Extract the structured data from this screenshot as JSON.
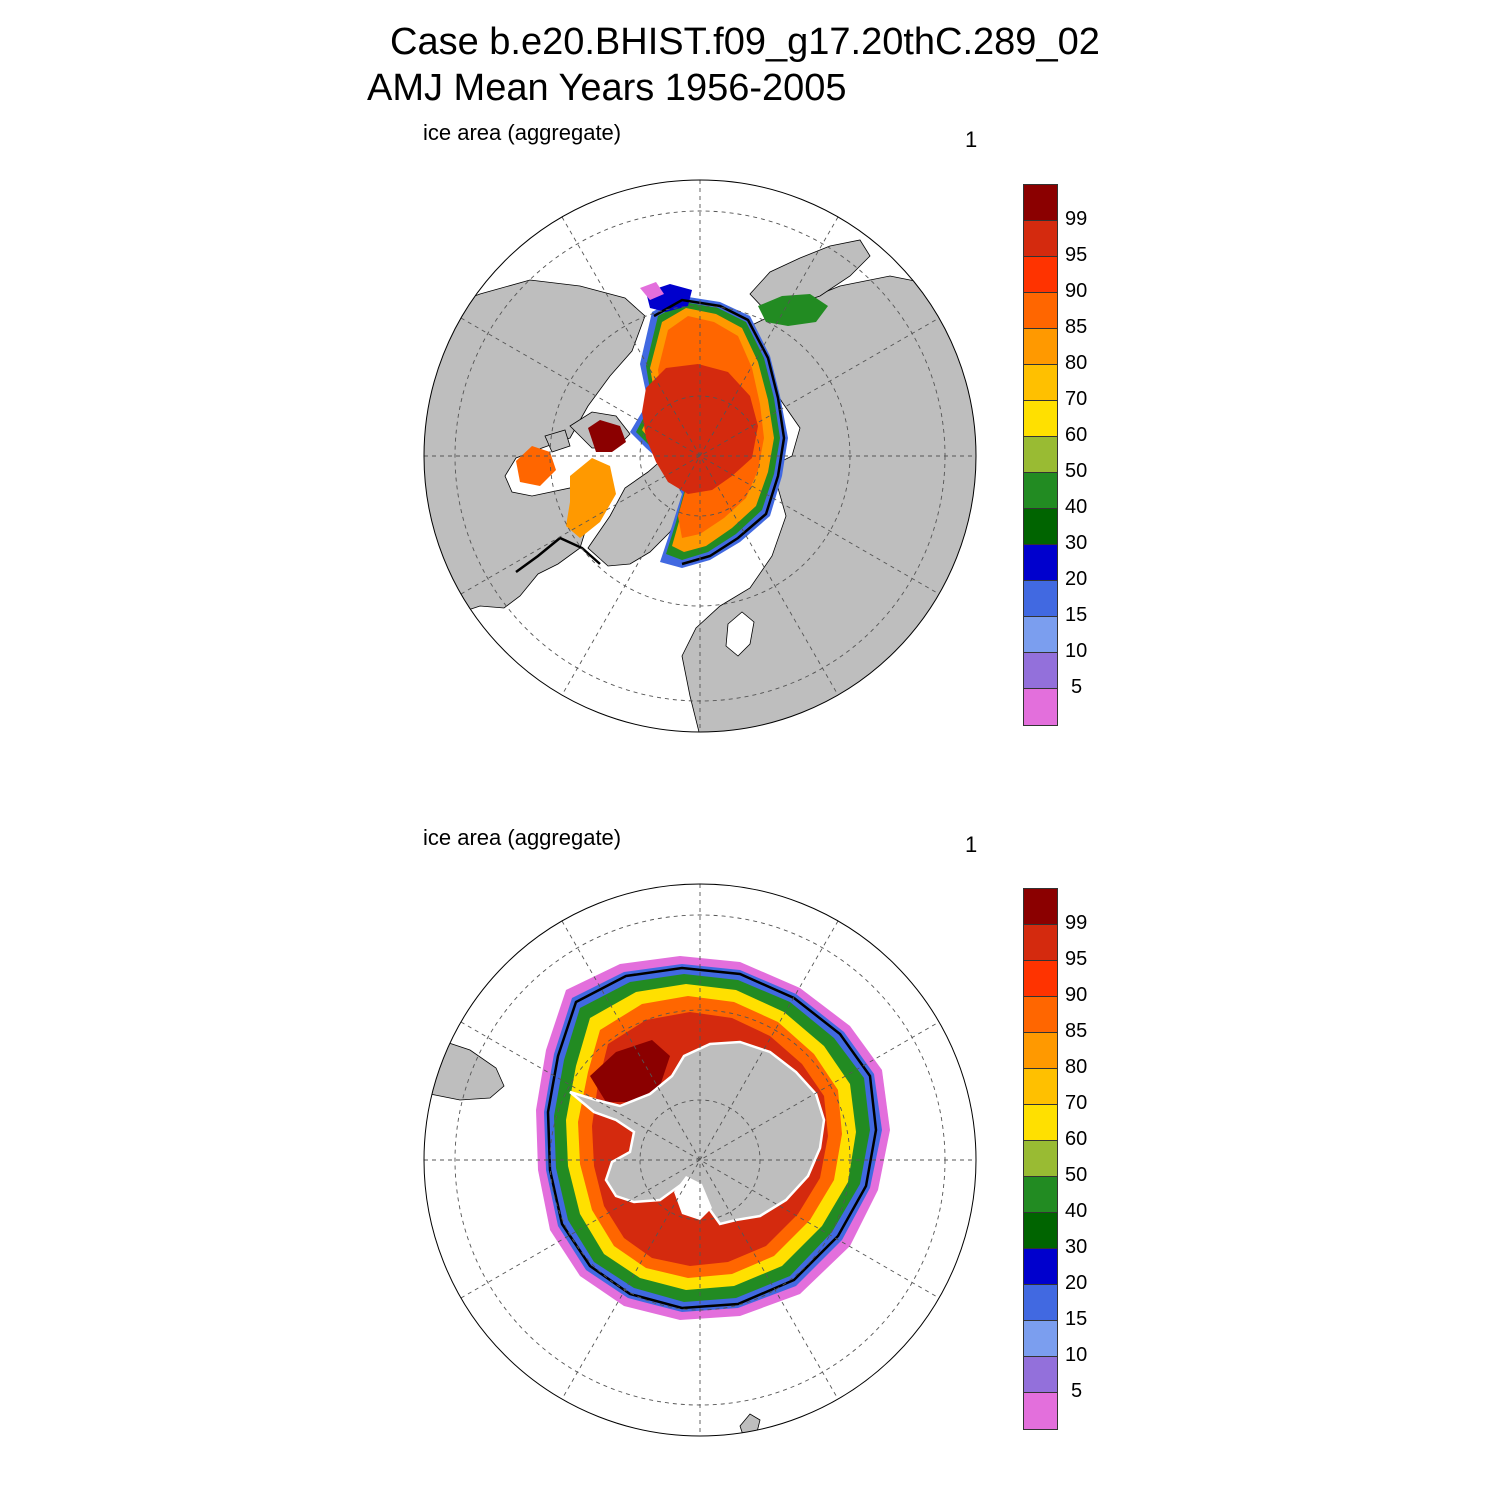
{
  "title": {
    "line1": "Case b.e20.BHIST.f09_g17.20thC.289_02",
    "line2": "AMJ Mean   Years 1956-2005"
  },
  "colorbar": {
    "colors": [
      "#8b0000",
      "#d42a0e",
      "#ff3300",
      "#ff6600",
      "#ff9900",
      "#ffc000",
      "#ffe000",
      "#99bb33",
      "#228b22",
      "#006400",
      "#0000cd",
      "#4169e1",
      "#7b9eef",
      "#9370db",
      "#e36fdc"
    ],
    "labels": [
      "99",
      "95",
      "90",
      "85",
      "80",
      "70",
      "60",
      "50",
      "40",
      "30",
      "20",
      "15",
      "10",
      "5"
    ]
  },
  "colors": {
    "land": "#bebebe",
    "ocean": "#ffffff",
    "ice_edge_line": "#000000",
    "grid": "#555555"
  },
  "panels": [
    {
      "id": "north",
      "hemisphere": "north",
      "label": "ice area  (aggregate)",
      "count": "1"
    },
    {
      "id": "south",
      "hemisphere": "south",
      "label": "ice area  (aggregate)",
      "count": "1"
    }
  ]
}
